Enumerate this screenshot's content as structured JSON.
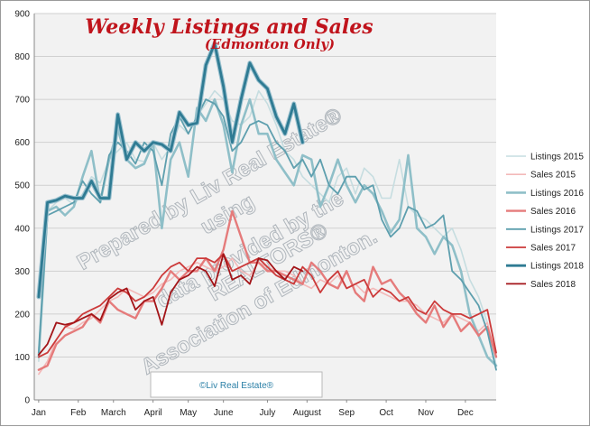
{
  "chart_data": {
    "type": "line",
    "title": "Weekly Listings and Sales",
    "subtitle": "(Edmonton Only)",
    "xlabel": "",
    "ylabel": "",
    "ylim": [
      0,
      900
    ],
    "yticks": [
      0,
      100,
      200,
      300,
      400,
      500,
      600,
      700,
      800,
      900
    ],
    "x_tick_labels": [
      "Jan",
      "Feb",
      "March",
      "April",
      "May",
      "June",
      "July",
      "August",
      "Sep",
      "Oct",
      "Nov",
      "Dec"
    ],
    "x_tick_weeks": [
      1,
      5.5,
      9.5,
      14,
      18,
      22,
      27,
      31.5,
      36,
      40.5,
      45,
      49.5
    ],
    "x_range": [
      0.5,
      53
    ],
    "grid": true,
    "legend_position": "right",
    "watermark": [
      "Prepared by Liv Real Estate®",
      "using",
      "data provided by the",
      "REALTORS®",
      "Association of Edmonton."
    ],
    "copyright": "©Liv Real Estate®",
    "series": [
      {
        "name": "Listings 2015",
        "color": "#c6dde0",
        "values": [
          90,
          440,
          460,
          470,
          455,
          480,
          520,
          505,
          560,
          580,
          600,
          560,
          555,
          600,
          560,
          590,
          640,
          620,
          660,
          690,
          720,
          700,
          650,
          640,
          660,
          720,
          690,
          640,
          580,
          560,
          520,
          500,
          480,
          460,
          520,
          540,
          480,
          540,
          520,
          470,
          470,
          560,
          450,
          430,
          420,
          400,
          380,
          400,
          350,
          280,
          240,
          180,
          80
        ]
      },
      {
        "name": "Sales 2015",
        "color": "#f3b9b9",
        "values": [
          60,
          90,
          140,
          170,
          165,
          180,
          190,
          210,
          230,
          240,
          260,
          250,
          240,
          250,
          270,
          280,
          300,
          310,
          320,
          310,
          300,
          310,
          330,
          300,
          290,
          320,
          310,
          300,
          300,
          290,
          270,
          260,
          280,
          270,
          290,
          260,
          270,
          250,
          260,
          250,
          240,
          230,
          230,
          220,
          200,
          190,
          180,
          200,
          190,
          180,
          160,
          180,
          100
        ]
      },
      {
        "name": "Listings 2016",
        "color": "#8fbfc8",
        "values": [
          100,
          440,
          450,
          430,
          450,
          520,
          580,
          460,
          560,
          630,
          560,
          540,
          550,
          600,
          400,
          560,
          600,
          520,
          680,
          650,
          700,
          640,
          530,
          640,
          700,
          620,
          620,
          560,
          530,
          500,
          570,
          560,
          450,
          500,
          560,
          500,
          460,
          500,
          480,
          440,
          390,
          420,
          570,
          400,
          380,
          340,
          380,
          360,
          300,
          200,
          150,
          100,
          80
        ]
      },
      {
        "name": "Sales 2016",
        "color": "#e57b7b",
        "values": [
          70,
          80,
          130,
          150,
          160,
          170,
          200,
          180,
          230,
          210,
          200,
          190,
          230,
          230,
          260,
          300,
          280,
          300,
          300,
          330,
          300,
          350,
          440,
          380,
          320,
          320,
          300,
          300,
          290,
          280,
          270,
          320,
          300,
          270,
          260,
          300,
          250,
          230,
          310,
          270,
          280,
          250,
          230,
          200,
          180,
          220,
          170,
          200,
          160,
          180,
          150,
          170,
          100
        ]
      },
      {
        "name": "Listings 2017",
        "color": "#5e9fae",
        "values": [
          110,
          430,
          440,
          450,
          460,
          510,
          480,
          460,
          570,
          600,
          580,
          550,
          600,
          580,
          500,
          620,
          660,
          620,
          660,
          700,
          690,
          660,
          580,
          600,
          640,
          650,
          640,
          600,
          580,
          540,
          560,
          520,
          560,
          500,
          480,
          520,
          520,
          490,
          500,
          420,
          380,
          400,
          450,
          440,
          400,
          410,
          430,
          300,
          280,
          250,
          220,
          160,
          70
        ]
      },
      {
        "name": "Sales 2017",
        "color": "#cc3a3a",
        "values": [
          100,
          110,
          140,
          170,
          180,
          200,
          210,
          220,
          240,
          260,
          250,
          230,
          240,
          260,
          290,
          310,
          320,
          300,
          330,
          330,
          320,
          340,
          300,
          310,
          320,
          330,
          310,
          290,
          280,
          270,
          310,
          290,
          250,
          280,
          300,
          260,
          270,
          280,
          240,
          260,
          250,
          230,
          240,
          210,
          200,
          230,
          210,
          200,
          200,
          190,
          200,
          210,
          110
        ]
      },
      {
        "name": "Listings 2018",
        "color": "#2f7b93",
        "values": [
          240,
          460,
          465,
          475,
          470,
          470,
          510,
          470,
          470,
          665,
          560,
          600,
          580,
          600,
          595,
          580,
          670,
          640,
          645,
          780,
          830,
          730,
          600,
          700,
          785,
          745,
          725,
          660,
          620,
          690,
          600
        ]
      },
      {
        "name": "Sales 2018",
        "color": "#a31418",
        "values": [
          105,
          130,
          180,
          175,
          180,
          190,
          200,
          185,
          235,
          250,
          260,
          210,
          230,
          240,
          175,
          250,
          280,
          290,
          310,
          300,
          265,
          340,
          280,
          290,
          270,
          330,
          325,
          300,
          280,
          310,
          300
        ]
      }
    ]
  }
}
